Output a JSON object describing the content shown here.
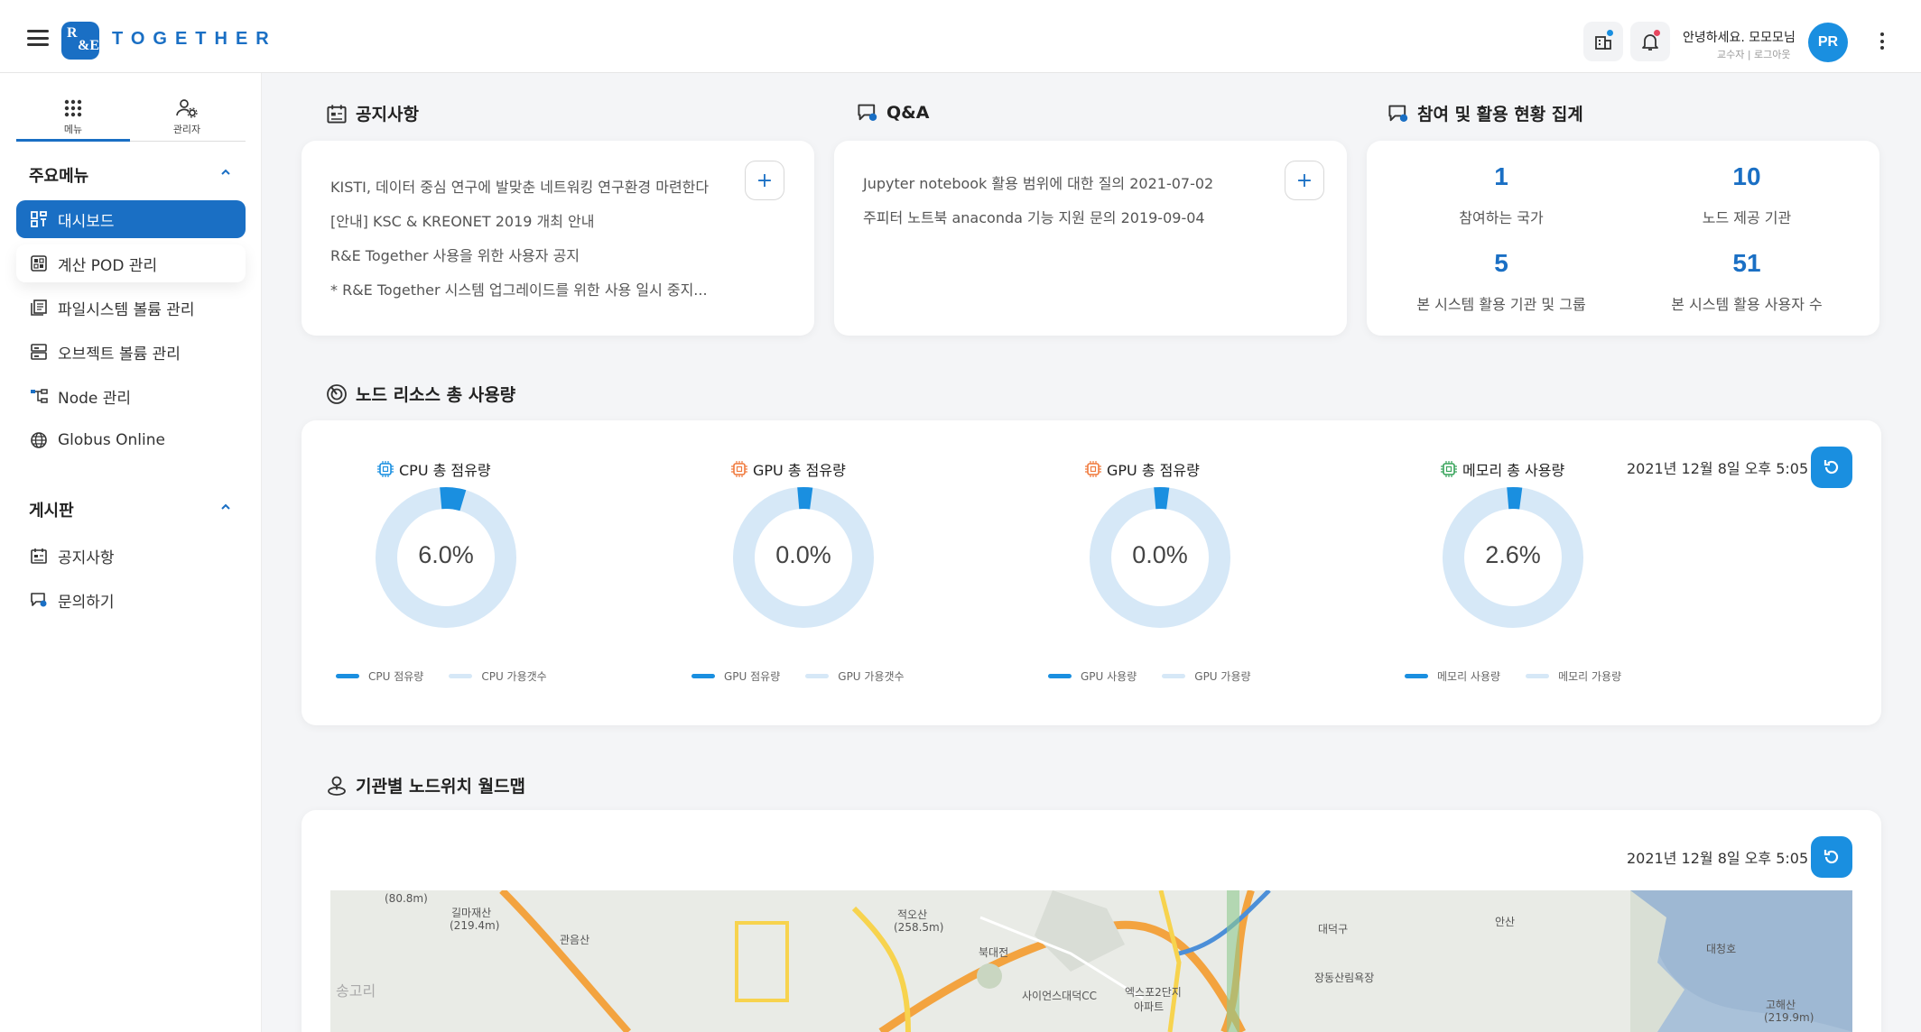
{
  "header": {
    "logo_line1": "R",
    "logo_line2": "&E",
    "logo_text": "TOGETHER",
    "greeting": "안녕하세요. 모모모님",
    "user_sub": "교수자 | 로그아웃",
    "avatar_initials": "PR"
  },
  "sidebar": {
    "tabs": [
      {
        "label": "메뉴",
        "icon": "grid-dots-icon"
      },
      {
        "label": "관리자",
        "icon": "user-gear-icon"
      }
    ],
    "main_menu_title": "주요메뉴",
    "main_menu": [
      {
        "label": "대시보드",
        "icon": "dashboard-icon"
      },
      {
        "label": "계산 POD 관리",
        "icon": "pod-icon"
      },
      {
        "label": "파일시스템 볼륨 관리",
        "icon": "filesystem-icon"
      },
      {
        "label": "오브젝트 볼륨 관리",
        "icon": "object-storage-icon"
      },
      {
        "label": "Node 관리",
        "icon": "node-tree-icon"
      },
      {
        "label": "Globus Online",
        "icon": "globe-icon"
      }
    ],
    "board_title": "게시판",
    "board_menu": [
      {
        "label": "공지사항",
        "icon": "notice-board-icon"
      },
      {
        "label": "문의하기",
        "icon": "inquiry-icon"
      }
    ]
  },
  "notice": {
    "title": "공지사항",
    "items": [
      "KISTI, 데이터 중심 연구에 발맞춘 네트워킹 연구환경 마련한다",
      "[안내] KSC & KREONET 2019 개최 안내",
      "R&E Together 사용을 위한 사용자 공지",
      "* R&E Together 시스템 업그레이드를 위한 사용 일시 중지..."
    ],
    "add_label": "+"
  },
  "qa": {
    "title": "Q&A",
    "items": [
      "Jupyter notebook 활용 범위에 대한 질의 2021-07-02",
      "주피터 노트북 anaconda 기능 지원 문의 2019-09-04"
    ],
    "add_label": "+"
  },
  "stats": {
    "title": "참여 및 활용 현황 집계",
    "items": [
      {
        "value": "1",
        "label": "참여하는 국가"
      },
      {
        "value": "10",
        "label": "노드 제공 기관"
      },
      {
        "value": "5",
        "label": "본 시스템 활용 기관 및 그룹"
      },
      {
        "value": "51",
        "label": "본 시스템 활용 사용자 수"
      }
    ]
  },
  "resources": {
    "title": "노드 리소스 총 사용량",
    "timestamp": "2021년 12월 8일 오후 5:05",
    "gauges": [
      {
        "title": "CPU 총 점유량",
        "value_text": "6.0%",
        "value": 6.0,
        "legend_used": "CPU 점유량",
        "legend_free": "CPU 가용갯수",
        "icon": "cpu-icon",
        "icon_color": "#1a8fe0"
      },
      {
        "title": "GPU 총 점유량",
        "value_text": "0.0%",
        "value": 0.0,
        "legend_used": "GPU 점유량",
        "legend_free": "GPU 가용갯수",
        "icon": "gpu-icon",
        "icon_color": "#f07b3f"
      },
      {
        "title": "GPU 총 점유량",
        "value_text": "0.0%",
        "value": 0.0,
        "legend_used": "GPU 사용량",
        "legend_free": "GPU 가용량",
        "icon": "gpu-icon",
        "icon_color": "#f07b3f"
      },
      {
        "title": "메모리 총 사용량",
        "value_text": "2.6%",
        "value": 2.6,
        "legend_used": "메모리 사용량",
        "legend_free": "메모리 가용량",
        "icon": "memory-icon",
        "icon_color": "#3aa55d"
      }
    ],
    "colors": {
      "used": "#1a8fe0",
      "free": "#d6e8f7"
    }
  },
  "worldmap": {
    "title": "기관별 노드위치 월드맵",
    "timestamp": "2021년 12월 8일 오후 5:05",
    "labels": [
      "(80.8m)",
      "길마재산",
      "(219.4m)",
      "관음산",
      "송고리",
      "적오산",
      "(258.5m)",
      "북대전",
      "사이언스대덕CC",
      "엑스포2단지",
      "아파트",
      "대덕구",
      "장동산림욕장",
      "안산",
      "대청호",
      "고해산",
      "(219.9m)"
    ]
  }
}
